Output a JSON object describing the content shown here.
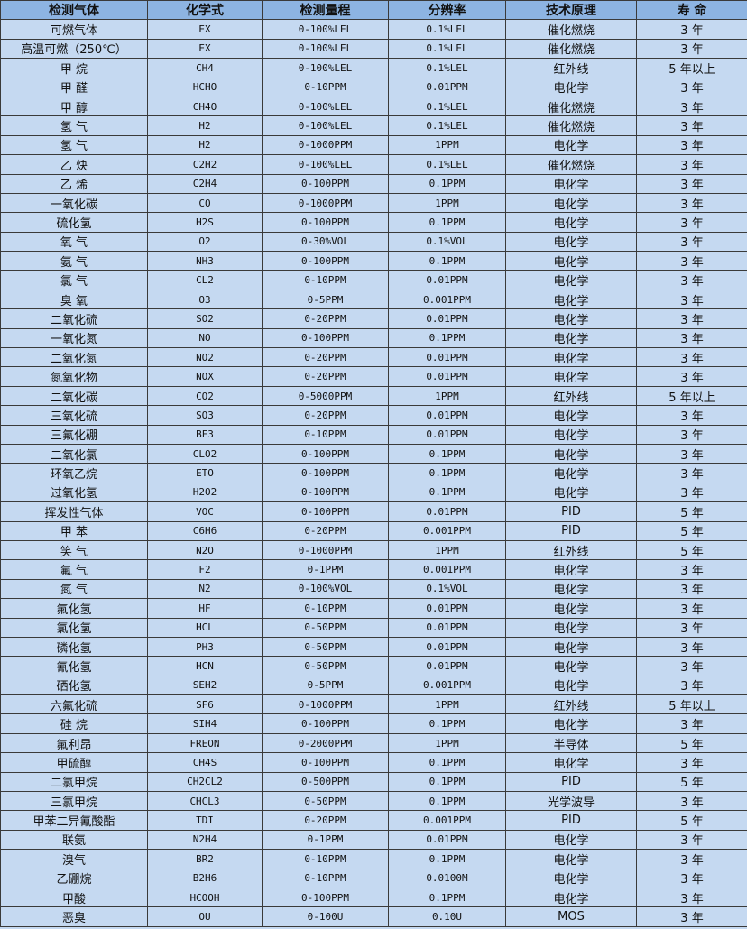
{
  "table": {
    "headers": [
      "检测气体",
      "化学式",
      "检测量程",
      "分辨率",
      "技术原理",
      "寿 命"
    ],
    "rows": [
      [
        "可燃气体",
        "EX",
        "0-100%LEL",
        "0.1%LEL",
        "催化燃烧",
        "3 年"
      ],
      [
        "高温可燃（250℃）",
        "EX",
        "0-100%LEL",
        "0.1%LEL",
        "催化燃烧",
        "3 年"
      ],
      [
        "甲 烷",
        "CH4",
        "0-100%LEL",
        "0.1%LEL",
        "红外线",
        "5 年以上"
      ],
      [
        "甲 醛",
        "HCHO",
        "0-10PPM",
        "0.01PPM",
        "电化学",
        "3 年"
      ],
      [
        "甲 醇",
        "CH4O",
        "0-100%LEL",
        "0.1%LEL",
        "催化燃烧",
        "3 年"
      ],
      [
        "氢 气",
        "H2",
        "0-100%LEL",
        "0.1%LEL",
        "催化燃烧",
        "3 年"
      ],
      [
        "氢 气",
        "H2",
        "0-1000PPM",
        "1PPM",
        "电化学",
        "3 年"
      ],
      [
        "乙 炔",
        "C2H2",
        "0-100%LEL",
        "0.1%LEL",
        "催化燃烧",
        "3 年"
      ],
      [
        "乙 烯",
        "C2H4",
        "0-100PPM",
        "0.1PPM",
        "电化学",
        "3 年"
      ],
      [
        "一氧化碳",
        "CO",
        "0-1000PPM",
        "1PPM",
        "电化学",
        "3 年"
      ],
      [
        "硫化氢",
        "H2S",
        "0-100PPM",
        "0.1PPM",
        "电化学",
        "3 年"
      ],
      [
        "氧 气",
        "O2",
        "0-30%VOL",
        "0.1%VOL",
        "电化学",
        "3 年"
      ],
      [
        "氨 气",
        "NH3",
        "0-100PPM",
        "0.1PPM",
        "电化学",
        "3 年"
      ],
      [
        "氯 气",
        "CL2",
        "0-10PPM",
        "0.01PPM",
        "电化学",
        "3 年"
      ],
      [
        "臭 氧",
        "O3",
        "0-5PPM",
        "0.001PPM",
        "电化学",
        "3 年"
      ],
      [
        "二氧化硫",
        "SO2",
        "0-20PPM",
        "0.01PPM",
        "电化学",
        "3 年"
      ],
      [
        "一氧化氮",
        "NO",
        "0-100PPM",
        "0.1PPM",
        "电化学",
        "3 年"
      ],
      [
        "二氧化氮",
        "NO2",
        "0-20PPM",
        "0.01PPM",
        "电化学",
        "3 年"
      ],
      [
        "氮氧化物",
        "NOX",
        "0-20PPM",
        "0.01PPM",
        "电化学",
        "3 年"
      ],
      [
        "二氧化碳",
        "CO2",
        "0-5000PPM",
        "1PPM",
        "红外线",
        "5 年以上"
      ],
      [
        "三氧化硫",
        "SO3",
        "0-20PPM",
        "0.01PPM",
        "电化学",
        "3 年"
      ],
      [
        "三氟化硼",
        "BF3",
        "0-10PPM",
        "0.01PPM",
        "电化学",
        "3 年"
      ],
      [
        "二氧化氯",
        "CLO2",
        "0-100PPM",
        "0.1PPM",
        "电化学",
        "3 年"
      ],
      [
        "环氧乙烷",
        "ETO",
        "0-100PPM",
        "0.1PPM",
        "电化学",
        "3 年"
      ],
      [
        "过氧化氢",
        "H2O2",
        "0-100PPM",
        "0.1PPM",
        "电化学",
        "3 年"
      ],
      [
        "挥发性气体",
        "VOC",
        "0-100PPM",
        "0.01PPM",
        "PID",
        "5 年"
      ],
      [
        "甲 苯",
        "C6H6",
        "0-20PPM",
        "0.001PPM",
        "PID",
        "5 年"
      ],
      [
        "笑 气",
        "N2O",
        "0-1000PPM",
        "1PPM",
        "红外线",
        "5 年"
      ],
      [
        "氟 气",
        "F2",
        "0-1PPM",
        "0.001PPM",
        "电化学",
        "3 年"
      ],
      [
        "氮 气",
        "N2",
        "0-100%VOL",
        "0.1%VOL",
        "电化学",
        "3 年"
      ],
      [
        "氟化氢",
        "HF",
        "0-10PPM",
        "0.01PPM",
        "电化学",
        "3 年"
      ],
      [
        "氯化氢",
        "HCL",
        "0-50PPM",
        "0.01PPM",
        "电化学",
        "3 年"
      ],
      [
        "磷化氢",
        "PH3",
        "0-50PPM",
        "0.01PPM",
        "电化学",
        "3 年"
      ],
      [
        "氰化氢",
        "HCN",
        "0-50PPM",
        "0.01PPM",
        "电化学",
        "3 年"
      ],
      [
        "硒化氢",
        "SEH2",
        "0-5PPM",
        "0.001PPM",
        "电化学",
        "3 年"
      ],
      [
        "六氟化硫",
        "SF6",
        "0-1000PPM",
        "1PPM",
        "红外线",
        "5 年以上"
      ],
      [
        "硅 烷",
        "SIH4",
        "0-100PPM",
        "0.1PPM",
        "电化学",
        "3 年"
      ],
      [
        "氟利昂",
        "FREON",
        "0-2000PPM",
        "1PPM",
        "半导体",
        "5 年"
      ],
      [
        "甲硫醇",
        "CH4S",
        "0-100PPM",
        "0.1PPM",
        "电化学",
        "3 年"
      ],
      [
        "二氯甲烷",
        "CH2CL2",
        "0-500PPM",
        "0.1PPM",
        "PID",
        "5 年"
      ],
      [
        "三氯甲烷",
        "CHCL3",
        "0-50PPM",
        "0.1PPM",
        "光学波导",
        "3 年"
      ],
      [
        "甲苯二异氰酸酯",
        "TDI",
        "0-20PPM",
        "0.001PPM",
        "PID",
        "5 年"
      ],
      [
        "联氨",
        "N2H4",
        "0-1PPM",
        "0.01PPM",
        "电化学",
        "3 年"
      ],
      [
        "溴气",
        "BR2",
        "0-10PPM",
        "0.1PPM",
        "电化学",
        "3 年"
      ],
      [
        "乙硼烷",
        "B2H6",
        "0-10PPM",
        "0.0100M",
        "电化学",
        "3 年"
      ],
      [
        "甲酸",
        "HCOOH",
        "0-100PPM",
        "0.1PPM",
        "电化学",
        "3 年"
      ],
      [
        "恶臭",
        "OU",
        "0-100U",
        "0.10U",
        "MOS",
        "3 年"
      ]
    ]
  },
  "colors": {
    "header_bg": "#8db4e2",
    "row_bg": "#c5d9f1",
    "border": "#3a3a3a"
  }
}
